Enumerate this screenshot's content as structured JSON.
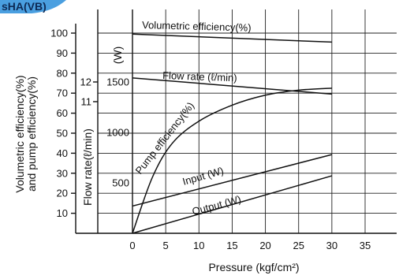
{
  "header_tab": {
    "text": "sHA(VB)",
    "color": "#4a9fe0"
  },
  "chart_data": {
    "type": "line",
    "x": [
      0,
      5,
      10,
      15,
      20,
      25,
      30,
      35
    ],
    "xlabel": "Pressure (kgf/cm²)",
    "xlim": [
      0,
      35
    ],
    "y_axes": [
      {
        "label": "Volumetric efficiency(%) and pump efficiency(%)",
        "ticks": [
          10,
          20,
          30,
          40,
          50,
          60,
          70,
          80,
          90,
          100
        ],
        "range": [
          0,
          100
        ]
      },
      {
        "label": "Flow rate(ℓ/min)",
        "ticks": [
          11,
          12
        ]
      },
      {
        "label": "(W)",
        "ticks": [
          500,
          1000,
          1500
        ],
        "range": [
          0,
          1500
        ]
      }
    ],
    "grid": true,
    "series": [
      {
        "name": "Volumetric efficiency(%)",
        "axis": "percent",
        "x": [
          0,
          30
        ],
        "y": [
          99.5,
          95.5
        ]
      },
      {
        "name": "Flow rate (ℓ/min)",
        "axis": "watts",
        "x": [
          0,
          30
        ],
        "y": [
          1540,
          1380
        ]
      },
      {
        "name": "Pump efficiency(%)",
        "axis": "percent",
        "x": [
          0,
          3,
          6,
          10,
          15,
          20,
          25,
          30
        ],
        "y": [
          0,
          28,
          45,
          56,
          64,
          69,
          71.5,
          72.5
        ]
      },
      {
        "name": "Input (W)",
        "axis": "watts",
        "x": [
          0,
          30
        ],
        "y": [
          270,
          780
        ]
      },
      {
        "name": "Output (W)",
        "axis": "watts",
        "x": [
          0,
          30
        ],
        "y": [
          0,
          570
        ]
      }
    ],
    "labels": {
      "pump_eff_unit": "(%)",
      "watts_unit": "(W)"
    }
  }
}
